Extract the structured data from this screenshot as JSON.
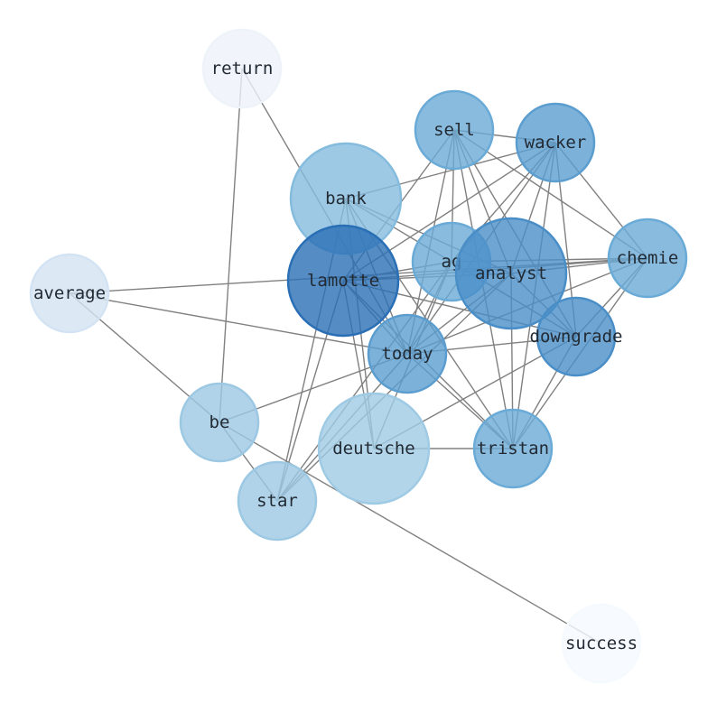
{
  "nodes": [
    {
      "id": "return",
      "label": "return",
      "color": "#eef3fa"
    },
    {
      "id": "sell",
      "label": "sell",
      "color": "#6aaad6"
    },
    {
      "id": "wacker",
      "label": "wacker",
      "color": "#5b9dcf"
    },
    {
      "id": "bank",
      "label": "bank",
      "color": "#85bcde"
    },
    {
      "id": "ag",
      "label": "ag",
      "color": "#6aaad6"
    },
    {
      "id": "analyst",
      "label": "analyst",
      "color": "#4a8ec8"
    },
    {
      "id": "chemie",
      "label": "chemie",
      "color": "#6aaad6"
    },
    {
      "id": "lamotte",
      "label": "lamotte",
      "color": "#2a6fb5"
    },
    {
      "id": "average",
      "label": "average",
      "color": "#d3e3f3"
    },
    {
      "id": "downgrade",
      "label": "downgrade",
      "color": "#4a8ec8"
    },
    {
      "id": "today",
      "label": "today",
      "color": "#5b9dcf"
    },
    {
      "id": "be",
      "label": "be",
      "color": "#9cc8e3"
    },
    {
      "id": "deutsche",
      "label": "deutsche",
      "color": "#9fcae4"
    },
    {
      "id": "tristan",
      "label": "tristan",
      "color": "#6aaad6"
    },
    {
      "id": "star",
      "label": "star",
      "color": "#9cc8e3"
    },
    {
      "id": "success",
      "label": "success",
      "color": "#f5faff"
    }
  ],
  "edges": [
    [
      "return",
      "be"
    ],
    [
      "return",
      "today"
    ],
    [
      "average",
      "chemie"
    ],
    [
      "average",
      "today"
    ],
    [
      "average",
      "be"
    ],
    [
      "be",
      "star"
    ],
    [
      "be",
      "success"
    ],
    [
      "be",
      "today"
    ],
    [
      "star",
      "lamotte"
    ],
    [
      "star",
      "bank"
    ],
    [
      "star",
      "ag"
    ],
    [
      "star",
      "analyst"
    ],
    [
      "star",
      "today"
    ],
    [
      "deutsche",
      "tristan"
    ],
    [
      "deutsche",
      "lamotte"
    ],
    [
      "deutsche",
      "bank"
    ],
    [
      "deutsche",
      "downgrade"
    ],
    [
      "deutsche",
      "ag"
    ],
    [
      "lamotte",
      "sell"
    ],
    [
      "lamotte",
      "wacker"
    ],
    [
      "lamotte",
      "chemie"
    ],
    [
      "lamotte",
      "ag"
    ],
    [
      "lamotte",
      "analyst"
    ],
    [
      "lamotte",
      "today"
    ],
    [
      "lamotte",
      "tristan"
    ],
    [
      "lamotte",
      "downgrade"
    ],
    [
      "bank",
      "wacker"
    ],
    [
      "bank",
      "downgrade"
    ],
    [
      "bank",
      "tristan"
    ],
    [
      "bank",
      "today"
    ],
    [
      "bank",
      "analyst"
    ],
    [
      "sell",
      "wacker"
    ],
    [
      "sell",
      "ag"
    ],
    [
      "sell",
      "today"
    ],
    [
      "sell",
      "analyst"
    ],
    [
      "sell",
      "downgrade"
    ],
    [
      "sell",
      "tristan"
    ],
    [
      "sell",
      "chemie"
    ],
    [
      "wacker",
      "chemie"
    ],
    [
      "wacker",
      "downgrade"
    ],
    [
      "wacker",
      "tristan"
    ],
    [
      "wacker",
      "analyst"
    ],
    [
      "wacker",
      "today"
    ],
    [
      "wacker",
      "ag"
    ],
    [
      "chemie",
      "ag"
    ],
    [
      "chemie",
      "analyst"
    ],
    [
      "chemie",
      "tristan"
    ],
    [
      "chemie",
      "downgrade"
    ],
    [
      "chemie",
      "today"
    ],
    [
      "analyst",
      "tristan"
    ],
    [
      "analyst",
      "today"
    ],
    [
      "analyst",
      "downgrade"
    ],
    [
      "today",
      "downgrade"
    ],
    [
      "today",
      "tristan"
    ],
    [
      "today",
      "ag"
    ],
    [
      "tristan",
      "downgrade"
    ]
  ],
  "edge_color": "#808080"
}
